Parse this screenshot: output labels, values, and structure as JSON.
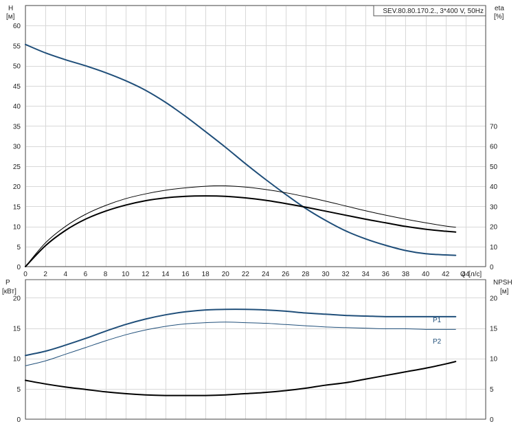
{
  "title": "SEV.80.80.170.2., 3*400 V, 50Hz",
  "top_chart": {
    "left_axis": {
      "label": "H",
      "unit": "[м]"
    },
    "right_axis": {
      "label": "eta",
      "unit": "[%]"
    },
    "x_axis": {
      "label": "Q",
      "unit": "[л/с]"
    }
  },
  "bottom_chart": {
    "left_axis": {
      "label": "P",
      "unit": "[кВт]"
    },
    "right_axis": {
      "label": "NPSH",
      "unit": "[м]"
    },
    "series_labels": {
      "p1": "P1",
      "p2": "P2"
    }
  },
  "colors": {
    "blue": "#1f4e79",
    "black": "#000000",
    "grid": "#d8d8d8"
  },
  "chart_data": [
    {
      "type": "line",
      "xlabel": "Q [л/с]",
      "ylabel": "H [м]",
      "y2label": "eta [%]",
      "xlim": [
        0,
        46
      ],
      "ylim": [
        0,
        65
      ],
      "y2lim": [
        0,
        130
      ],
      "xticks": [
        0,
        2,
        4,
        6,
        8,
        10,
        12,
        14,
        16,
        18,
        20,
        22,
        24,
        26,
        28,
        30,
        32,
        34,
        36,
        38,
        40,
        42,
        44
      ],
      "yticks": [
        0,
        5,
        10,
        15,
        20,
        25,
        30,
        35,
        40,
        45,
        50,
        55,
        60
      ],
      "y2ticks": [
        0,
        10,
        20,
        30,
        40,
        50,
        60,
        70
      ],
      "grid": true,
      "series": [
        {
          "key": "H",
          "color": "#1f4e79",
          "width": 2,
          "axis": "y",
          "x": [
            0,
            2,
            4,
            6,
            8,
            10,
            12,
            14,
            16,
            18,
            20,
            22,
            24,
            26,
            28,
            30,
            32,
            34,
            36,
            38,
            40,
            42,
            43
          ],
          "y": [
            55.3,
            53.2,
            51.5,
            50.0,
            48.3,
            46.3,
            43.9,
            40.9,
            37.4,
            33.6,
            29.7,
            25.6,
            21.7,
            18.0,
            14.5,
            11.5,
            8.9,
            6.9,
            5.3,
            4.0,
            3.2,
            2.9,
            2.8
          ]
        },
        {
          "key": "eta_1",
          "color": "#000000",
          "width": 1,
          "axis": "y",
          "x": [
            0,
            2,
            4,
            6,
            8,
            10,
            12,
            14,
            16,
            18,
            20,
            22,
            24,
            26,
            28,
            30,
            32,
            34,
            36,
            38,
            40,
            42,
            43
          ],
          "y": [
            0,
            5.9,
            10.0,
            13.0,
            15.2,
            16.9,
            18.1,
            19.0,
            19.6,
            20.0,
            20.1,
            19.8,
            19.2,
            18.4,
            17.4,
            16.3,
            15.1,
            13.9,
            12.8,
            11.8,
            10.9,
            10.1,
            9.8
          ]
        },
        {
          "key": "eta_2",
          "color": "#000000",
          "width": 2,
          "axis": "y",
          "x": [
            0,
            2,
            4,
            6,
            8,
            10,
            12,
            14,
            16,
            18,
            20,
            22,
            24,
            26,
            28,
            30,
            32,
            34,
            36,
            38,
            40,
            42,
            43
          ],
          "y": [
            0,
            5.2,
            9.0,
            11.8,
            13.8,
            15.3,
            16.4,
            17.1,
            17.5,
            17.6,
            17.5,
            17.1,
            16.5,
            15.7,
            14.8,
            13.8,
            12.8,
            11.8,
            10.9,
            10.0,
            9.3,
            8.8,
            8.6
          ]
        }
      ]
    },
    {
      "type": "line",
      "xlabel": "",
      "ylabel": "P [кВт]",
      "y2label": "NPSH [м]",
      "xlim": [
        0,
        46
      ],
      "ylim": [
        0,
        23
      ],
      "y2lim": [
        0,
        23
      ],
      "yticks": [
        0,
        5,
        10,
        15,
        20
      ],
      "y2ticks": [
        0,
        5,
        10,
        15,
        20
      ],
      "grid": true,
      "series": [
        {
          "key": "P1",
          "name": "P1",
          "color": "#1f4e79",
          "width": 2,
          "axis": "y",
          "x": [
            0,
            2,
            4,
            6,
            8,
            10,
            12,
            14,
            16,
            18,
            20,
            22,
            24,
            26,
            28,
            30,
            32,
            34,
            36,
            38,
            40,
            42,
            43
          ],
          "y": [
            10.5,
            11.2,
            12.2,
            13.3,
            14.5,
            15.6,
            16.5,
            17.2,
            17.7,
            18.0,
            18.1,
            18.1,
            18.0,
            17.8,
            17.5,
            17.3,
            17.1,
            17.0,
            16.9,
            16.9,
            16.9,
            16.9,
            16.9
          ]
        },
        {
          "key": "P2",
          "name": "P2",
          "color": "#1f4e79",
          "width": 1,
          "axis": "y",
          "x": [
            0,
            2,
            4,
            6,
            8,
            10,
            12,
            14,
            16,
            18,
            20,
            22,
            24,
            26,
            28,
            30,
            32,
            34,
            36,
            38,
            40,
            42,
            43
          ],
          "y": [
            8.8,
            9.6,
            10.7,
            11.8,
            12.9,
            13.9,
            14.7,
            15.3,
            15.7,
            15.9,
            16.0,
            15.9,
            15.8,
            15.6,
            15.4,
            15.2,
            15.1,
            15.0,
            14.9,
            14.9,
            14.8,
            14.8,
            14.8
          ]
        },
        {
          "key": "NPSH",
          "color": "#000000",
          "width": 2,
          "axis": "y2",
          "x": [
            0,
            2,
            4,
            6,
            8,
            10,
            12,
            14,
            16,
            18,
            20,
            22,
            24,
            26,
            28,
            30,
            32,
            34,
            36,
            38,
            40,
            42,
            43
          ],
          "y": [
            6.4,
            5.8,
            5.3,
            4.9,
            4.5,
            4.2,
            4.0,
            3.9,
            3.9,
            3.9,
            4.0,
            4.2,
            4.4,
            4.7,
            5.1,
            5.6,
            6.0,
            6.6,
            7.2,
            7.8,
            8.4,
            9.1,
            9.5
          ]
        }
      ]
    }
  ]
}
